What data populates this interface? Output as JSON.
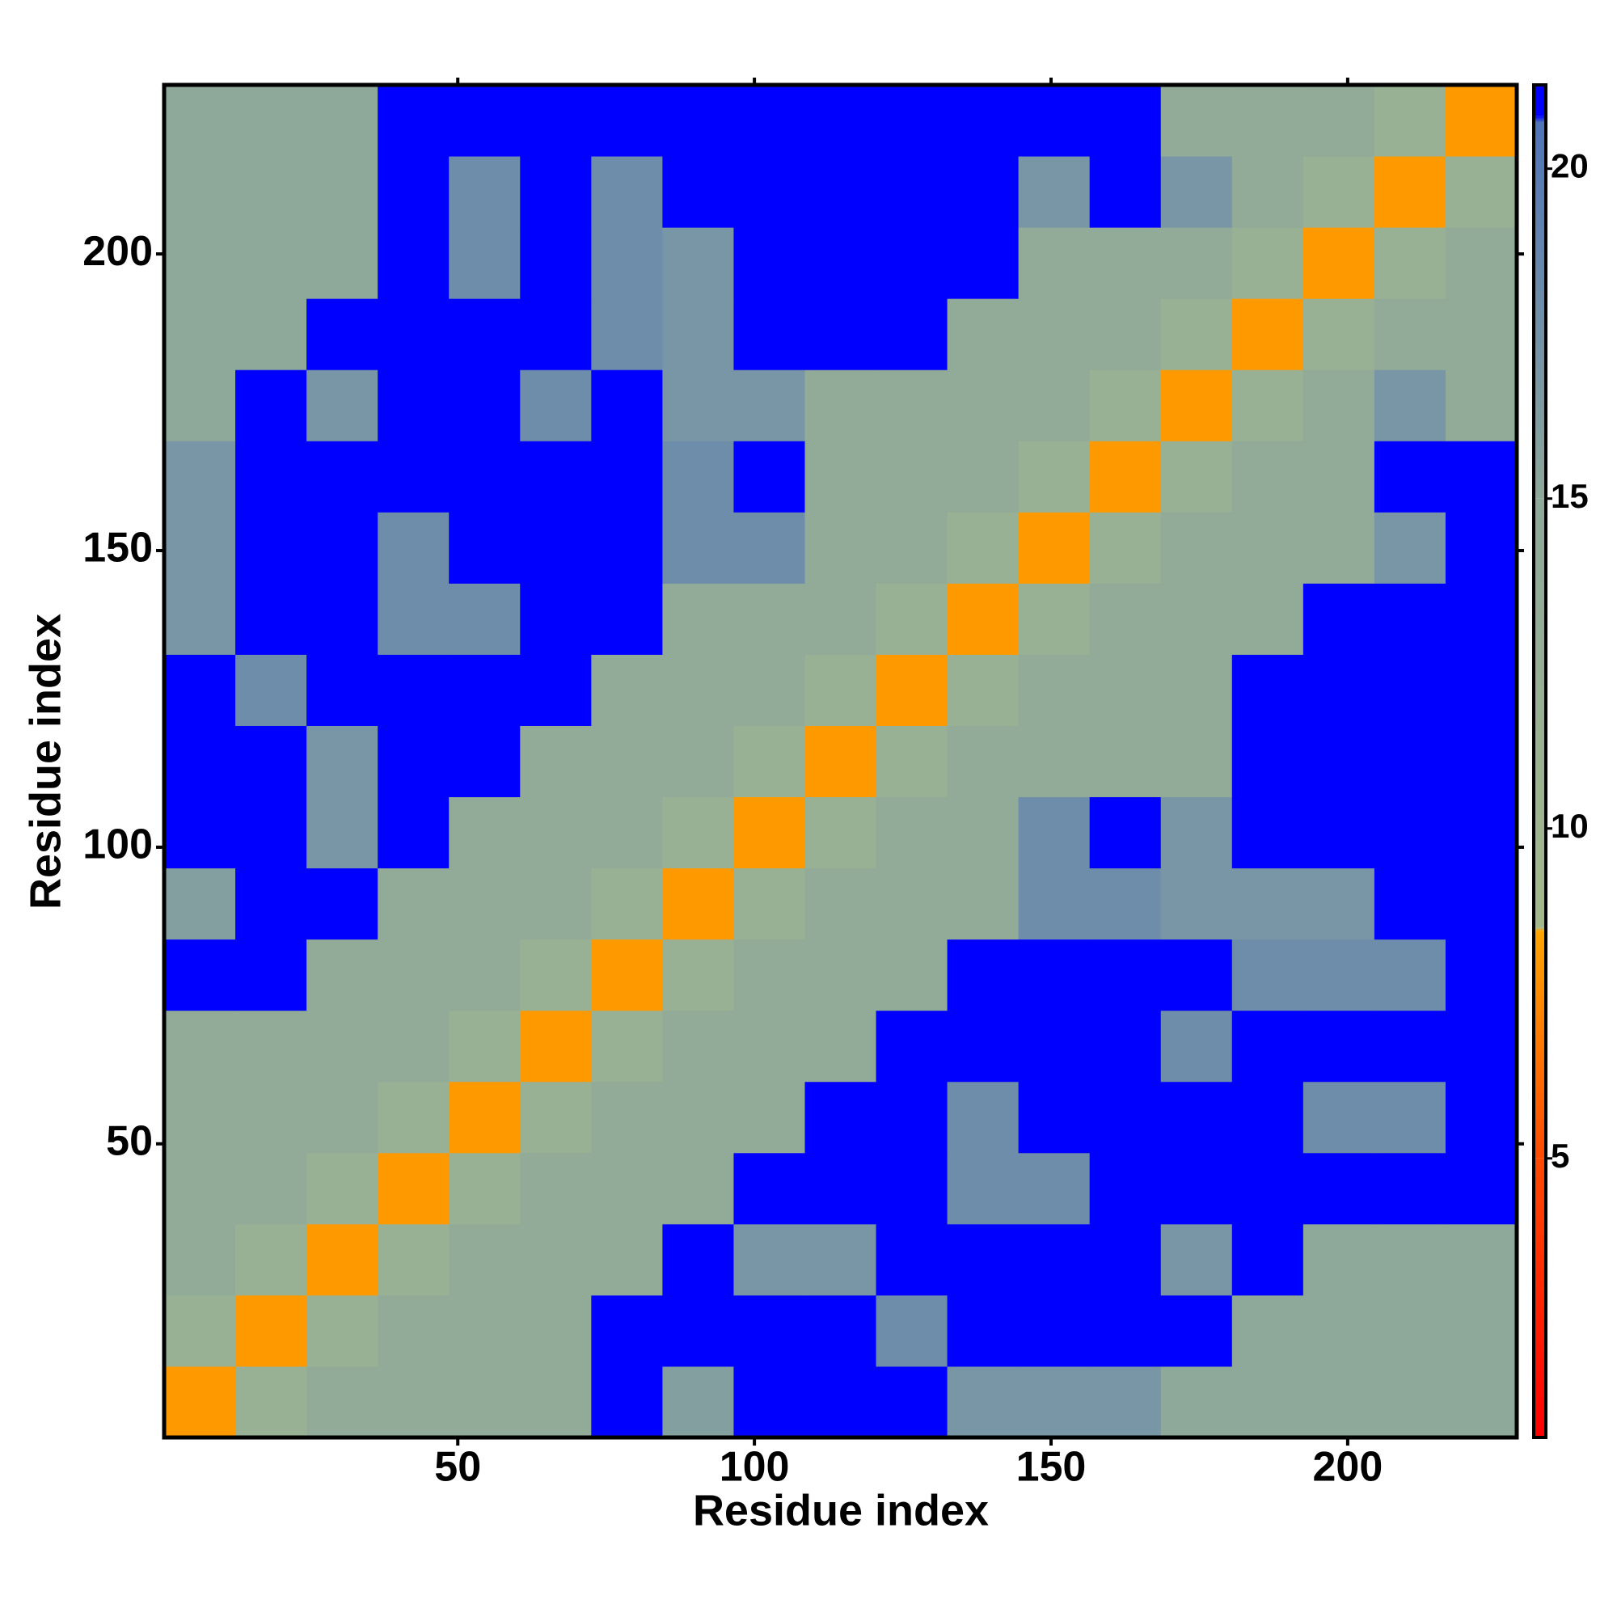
{
  "chart_data": {
    "type": "heatmap",
    "xlabel": "Residue index",
    "ylabel": "Residue index",
    "xbins": [
      0.5,
      12.5,
      24.5,
      36.5,
      48.5,
      60.5,
      72.5,
      84.5,
      96.5,
      108.5,
      120.5,
      132.5,
      144.5,
      156.5,
      168.5,
      180.5,
      192.5,
      204.5,
      216.5,
      228.5
    ],
    "ybins": [
      0.5,
      12.5,
      24.5,
      36.5,
      48.5,
      60.5,
      72.5,
      84.5,
      96.5,
      108.5,
      120.5,
      132.5,
      144.5,
      156.5,
      168.5,
      180.5,
      192.5,
      204.5,
      216.5,
      228.5
    ],
    "xlim": [
      0.5,
      228.5
    ],
    "ylim": [
      0.5,
      228.5
    ],
    "xticks": [
      50,
      100,
      150,
      200
    ],
    "yticks": [
      50,
      100,
      150,
      200
    ],
    "values": [
      [
        8,
        12,
        14,
        14,
        14,
        14,
        21,
        16,
        21,
        21,
        21,
        17,
        17,
        17,
        15,
        15,
        15,
        15,
        15
      ],
      [
        12,
        8,
        12,
        14,
        14,
        14,
        21,
        21,
        21,
        21,
        18,
        21,
        21,
        21,
        21,
        15,
        15,
        15,
        15
      ],
      [
        14,
        12,
        8,
        12,
        14,
        14,
        14,
        21,
        17,
        17,
        21,
        21,
        21,
        21,
        17,
        21,
        15,
        15,
        15
      ],
      [
        14,
        14,
        12,
        8,
        12,
        14,
        14,
        14,
        21,
        21,
        21,
        18,
        18,
        21,
        21,
        21,
        21,
        21,
        21
      ],
      [
        14,
        14,
        14,
        12,
        8,
        12,
        14,
        14,
        14,
        21,
        21,
        18,
        21,
        21,
        21,
        21,
        18,
        18,
        21
      ],
      [
        14,
        14,
        14,
        14,
        12,
        8,
        12,
        14,
        14,
        14,
        21,
        21,
        21,
        21,
        18,
        21,
        21,
        21,
        21
      ],
      [
        21,
        21,
        14,
        14,
        14,
        12,
        8,
        12,
        14,
        14,
        14,
        21,
        21,
        21,
        21,
        18,
        18,
        18,
        21
      ],
      [
        16,
        21,
        21,
        14,
        14,
        14,
        12,
        8,
        12,
        14,
        14,
        14,
        18,
        18,
        17,
        17,
        17,
        21,
        21
      ],
      [
        21,
        21,
        17,
        21,
        14,
        14,
        14,
        12,
        8,
        12,
        14,
        14,
        18,
        21,
        17,
        21,
        21,
        21,
        21
      ],
      [
        21,
        21,
        17,
        21,
        21,
        14,
        14,
        14,
        12,
        8,
        12,
        14,
        14,
        14,
        14,
        21,
        21,
        21,
        21
      ],
      [
        21,
        18,
        21,
        21,
        21,
        21,
        14,
        14,
        14,
        12,
        8,
        12,
        14,
        14,
        14,
        21,
        21,
        21,
        21
      ],
      [
        17,
        21,
        21,
        18,
        18,
        21,
        21,
        14,
        14,
        14,
        12,
        8,
        12,
        14,
        14,
        14,
        21,
        21,
        21
      ],
      [
        17,
        21,
        21,
        18,
        21,
        21,
        21,
        18,
        18,
        14,
        14,
        12,
        8,
        12,
        14,
        14,
        14,
        17,
        21
      ],
      [
        17,
        21,
        21,
        21,
        21,
        21,
        21,
        18,
        21,
        14,
        14,
        14,
        12,
        8,
        12,
        14,
        14,
        21,
        21
      ],
      [
        15,
        21,
        17,
        21,
        21,
        18,
        21,
        17,
        17,
        14,
        14,
        14,
        14,
        12,
        8,
        12,
        14,
        17,
        14
      ],
      [
        15,
        15,
        21,
        21,
        21,
        21,
        18,
        17,
        21,
        21,
        21,
        14,
        14,
        14,
        12,
        8,
        12,
        14,
        14
      ],
      [
        15,
        15,
        15,
        21,
        18,
        21,
        18,
        17,
        21,
        21,
        21,
        21,
        14,
        14,
        14,
        12,
        8,
        12,
        14
      ],
      [
        15,
        15,
        15,
        21,
        18,
        21,
        18,
        21,
        21,
        21,
        21,
        21,
        17,
        21,
        17,
        14,
        12,
        8,
        12
      ],
      [
        15,
        15,
        15,
        21,
        21,
        21,
        21,
        21,
        21,
        21,
        21,
        21,
        21,
        21,
        14,
        14,
        14,
        12,
        8
      ]
    ],
    "clim": [
      0.77,
      21.27
    ],
    "cticks": [
      5,
      10,
      15,
      20
    ],
    "colorscale": [
      [
        0.77,
        "#ff0000"
      ],
      [
        5,
        "#ff4a00"
      ],
      [
        8.45,
        "#ffa500"
      ],
      [
        8.5,
        "#a3b98c"
      ],
      [
        15,
        "#8ea89a"
      ],
      [
        20.7,
        "#4f74b8"
      ],
      [
        20.8,
        "#0000ff"
      ],
      [
        21.27,
        "#0000ff"
      ]
    ]
  }
}
